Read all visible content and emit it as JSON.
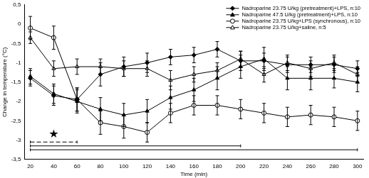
{
  "chart_data": {
    "type": "line",
    "x_label": "Time (min)",
    "y_label": "Change in temperature (°C)",
    "xlim": [
      15,
      305
    ],
    "xticks": [
      20,
      40,
      60,
      80,
      100,
      120,
      140,
      160,
      180,
      200,
      220,
      240,
      260,
      280,
      300
    ],
    "ylim": [
      -3.5,
      0.5
    ],
    "yticks": [
      {
        "value": -3.5,
        "label": "-3,5"
      },
      -3,
      {
        "value": -2.5,
        "label": "-2,5"
      },
      -2,
      {
        "value": -1.5,
        "label": "-1,5"
      },
      -1,
      {
        "value": -0.5,
        "label": "-0,5"
      },
      0,
      {
        "value": 0.5,
        "label": "0,5"
      }
    ],
    "grid": false,
    "legend": "upper right",
    "x": [
      20,
      40,
      60,
      80,
      100,
      120,
      140,
      160,
      180,
      200,
      220,
      240,
      260,
      280,
      300
    ],
    "series": [
      {
        "name": "Nadroparine 23.75 U/kg (pretreatment)+LPS, n:10",
        "color": "#000000",
        "marker": "filled_diamond",
        "values": [
          -1.4,
          -1.85,
          -1.95,
          -1.3,
          -1.1,
          -1.0,
          -0.85,
          -0.8,
          -0.65,
          -0.95,
          -0.95,
          -1.05,
          -1.05,
          -1.05,
          -1.15
        ],
        "errors": [
          0.2,
          0.25,
          0.3,
          0.3,
          0.25,
          0.25,
          0.2,
          0.2,
          0.2,
          0.25,
          0.2,
          0.2,
          0.2,
          0.2,
          0.2
        ]
      },
      {
        "name": "Nadroparine 47.5 U/kg (pretreatment)+LPS, n:10",
        "color": "#000000",
        "marker": "filled_triangle",
        "values": [
          -1.35,
          -1.8,
          -2.0,
          -2.2,
          -2.35,
          -2.25,
          -1.9,
          -1.7,
          -1.4,
          -1.1,
          -0.9,
          -1.4,
          -1.4,
          -1.4,
          -1.5
        ],
        "errors": [
          0.2,
          0.25,
          0.3,
          0.3,
          0.3,
          0.3,
          0.3,
          0.3,
          0.3,
          0.3,
          0.3,
          0.3,
          0.3,
          0.25,
          0.25
        ]
      },
      {
        "name": "Nadroparine 23.75 U/kg+LPS (synchronous), n:10",
        "color": "#000000",
        "marker": "open_circle",
        "values": [
          -0.1,
          -0.35,
          -1.95,
          -2.55,
          -2.65,
          -2.8,
          -2.3,
          -2.1,
          -2.1,
          -2.2,
          -2.3,
          -2.4,
          -2.35,
          -2.4,
          -2.5
        ],
        "errors": [
          0.3,
          0.3,
          0.3,
          0.3,
          0.3,
          0.25,
          0.25,
          0.25,
          0.25,
          0.25,
          0.25,
          0.25,
          0.25,
          0.25,
          0.25
        ]
      },
      {
        "name": "Nadroparine 23.75 U/kg+saline, n:5",
        "color": "#000000",
        "marker": "open_triangle",
        "values": [
          -0.35,
          -1.15,
          -1.1,
          -1.1,
          -1.15,
          -1.15,
          -1.45,
          -1.3,
          -1.2,
          -0.9,
          -1.3,
          -1.0,
          -1.15,
          -1.0,
          -1.3
        ],
        "errors": [
          0.15,
          0.2,
          0.2,
          0.2,
          0.2,
          0.2,
          0.25,
          0.2,
          0.2,
          0.2,
          0.2,
          0.2,
          0.2,
          0.2,
          0.2
        ]
      }
    ],
    "significance_bars": [
      {
        "x": [
          20,
          60
        ],
        "y": -3.05,
        "line_style": "dashed"
      },
      {
        "x": [
          20,
          200
        ],
        "y": -3.15,
        "line_style": "solid"
      },
      {
        "x": [
          20,
          300
        ],
        "y": -3.25,
        "line_style": "solid"
      }
    ],
    "annotations": [
      {
        "text": "★",
        "x": 40,
        "y": -2.85
      }
    ]
  }
}
